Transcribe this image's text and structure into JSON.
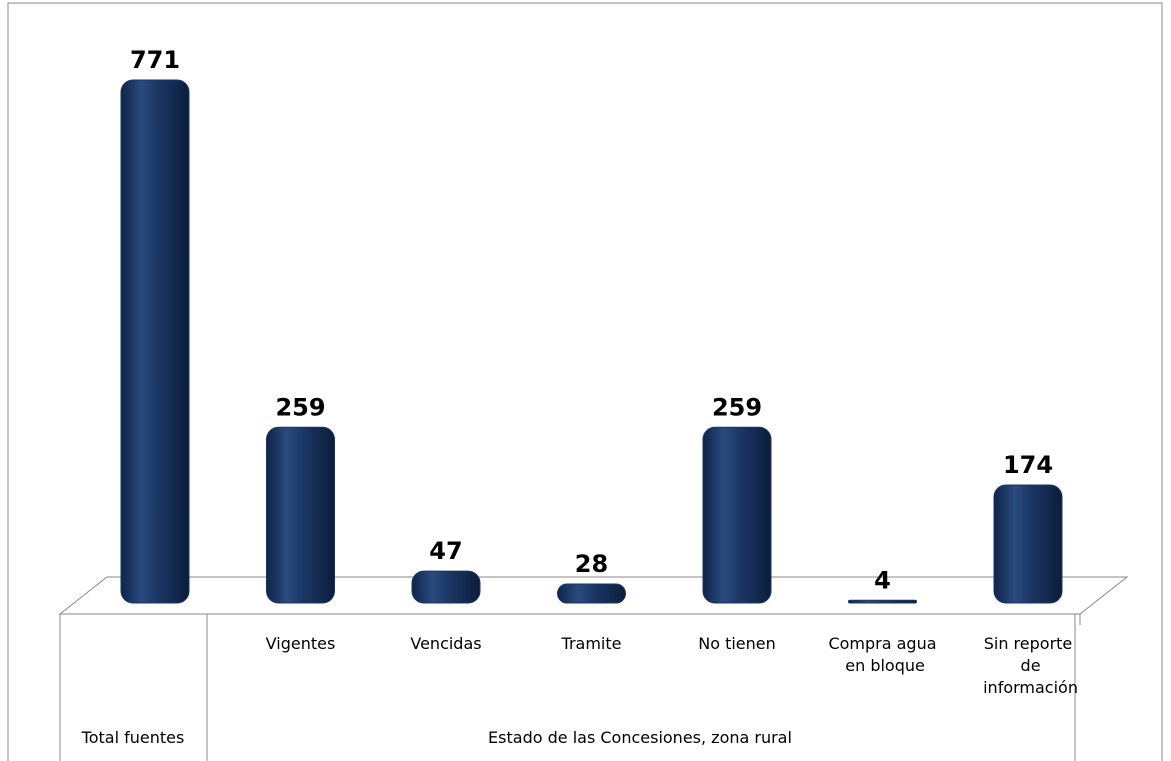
{
  "chart_data": {
    "type": "bar",
    "categories": [
      "Total fuentes",
      "Vigentes",
      "Vencidas",
      "Tramite",
      "No tienen",
      "Compra agua en bloque",
      "Sin reporte de información"
    ],
    "values": [
      771,
      259,
      47,
      28,
      259,
      4,
      174
    ],
    "color": "#1b3664",
    "category_group": "Estado de las Concesiones, zona rural"
  }
}
